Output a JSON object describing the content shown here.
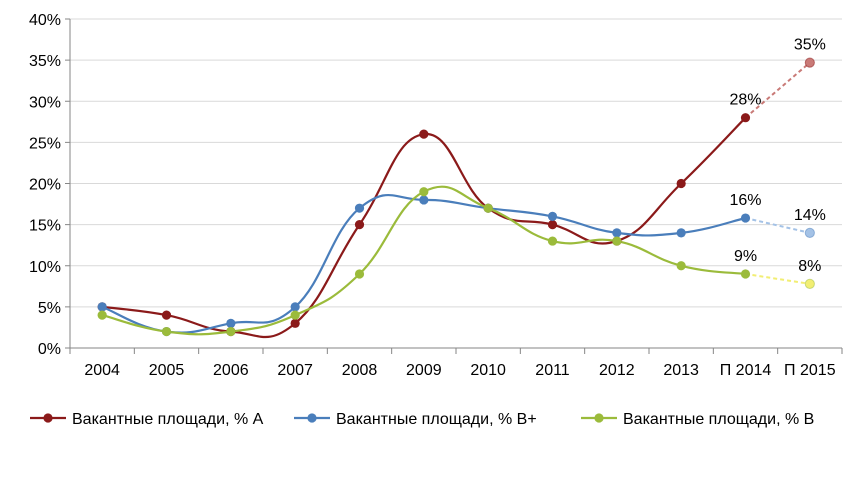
{
  "chart_data": {
    "type": "line",
    "title": "",
    "xlabel": "",
    "ylabel": "",
    "categories": [
      "2004",
      "2005",
      "2006",
      "2007",
      "2008",
      "2009",
      "2010",
      "2011",
      "2012",
      "2013",
      "П 2014",
      "П 2015"
    ],
    "y_ticks": [
      "0%",
      "5%",
      "10%",
      "15%",
      "20%",
      "25%",
      "30%",
      "35%",
      "40%"
    ],
    "ylim": [
      0,
      40
    ],
    "y_unit": "%",
    "grid": "horizontal",
    "legend_position": "bottom",
    "forecast_from_index": 10,
    "series": [
      {
        "name": "Вакантные площади, % А",
        "color": "#8b1a1a",
        "forecast_color": "#c97a77",
        "values": [
          5,
          4,
          2,
          3,
          15,
          26,
          17,
          15,
          13,
          20,
          28,
          34.7
        ],
        "labels": [
          {
            "index": 10,
            "text": "28%"
          },
          {
            "index": 11,
            "text": "35%"
          }
        ]
      },
      {
        "name": "Вакантные площади, % B+",
        "color": "#4a7ebb",
        "forecast_color": "#a4c2e6",
        "values": [
          5,
          2,
          3,
          5,
          17,
          18,
          17,
          16,
          14,
          14,
          15.8,
          14
        ],
        "labels": [
          {
            "index": 10,
            "text": "16%"
          },
          {
            "index": 11,
            "text": "14%"
          }
        ]
      },
      {
        "name": "Вакантные площади, % B",
        "color": "#9bbb3b",
        "forecast_color": "#f2ee73",
        "values": [
          4,
          2,
          2,
          4,
          9,
          19,
          17,
          13,
          13,
          10,
          9,
          7.8
        ],
        "labels": [
          {
            "index": 10,
            "text": "9%"
          },
          {
            "index": 11,
            "text": "8%"
          }
        ]
      }
    ]
  }
}
